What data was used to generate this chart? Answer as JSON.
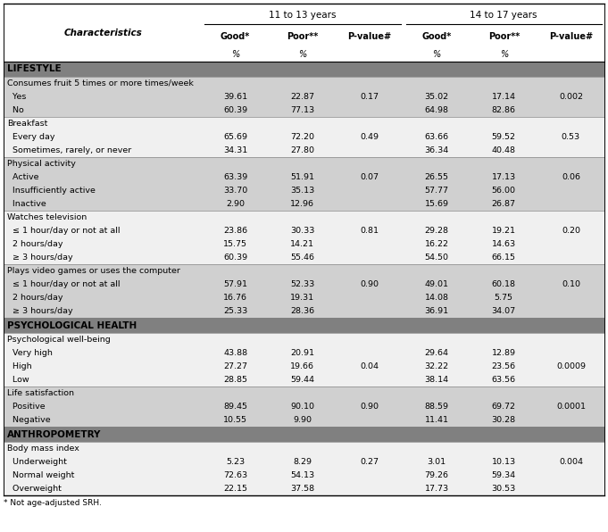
{
  "rows": [
    {
      "label": "Consumes fruit 5 times or more times/week",
      "indent": 0,
      "type": "subheader",
      "bg": "light",
      "values": [
        "",
        "",
        "",
        "",
        "",
        ""
      ]
    },
    {
      "label": "  Yes",
      "indent": 1,
      "type": "data",
      "bg": "light",
      "values": [
        "39.61",
        "22.87",
        "0.17",
        "35.02",
        "17.14",
        "0.002"
      ]
    },
    {
      "label": "  No",
      "indent": 1,
      "type": "data",
      "bg": "light",
      "values": [
        "60.39",
        "77.13",
        "",
        "64.98",
        "82.86",
        ""
      ]
    },
    {
      "label": "Breakfast",
      "indent": 0,
      "type": "subheader",
      "bg": "white",
      "values": [
        "",
        "",
        "",
        "",
        "",
        ""
      ]
    },
    {
      "label": "  Every day",
      "indent": 1,
      "type": "data",
      "bg": "white",
      "values": [
        "65.69",
        "72.20",
        "0.49",
        "63.66",
        "59.52",
        "0.53"
      ]
    },
    {
      "label": "  Sometimes, rarely, or never",
      "indent": 1,
      "type": "data",
      "bg": "white",
      "values": [
        "34.31",
        "27.80",
        "",
        "36.34",
        "40.48",
        ""
      ]
    },
    {
      "label": "Physical activity",
      "indent": 0,
      "type": "subheader",
      "bg": "light",
      "values": [
        "",
        "",
        "",
        "",
        "",
        ""
      ]
    },
    {
      "label": "  Active",
      "indent": 1,
      "type": "data",
      "bg": "light",
      "values": [
        "63.39",
        "51.91",
        "0.07",
        "26.55",
        "17.13",
        "0.06"
      ]
    },
    {
      "label": "  Insufficiently active",
      "indent": 1,
      "type": "data",
      "bg": "light",
      "values": [
        "33.70",
        "35.13",
        "",
        "57.77",
        "56.00",
        ""
      ]
    },
    {
      "label": "  Inactive",
      "indent": 1,
      "type": "data",
      "bg": "light",
      "values": [
        "2.90",
        "12.96",
        "",
        "15.69",
        "26.87",
        ""
      ]
    },
    {
      "label": "Watches television",
      "indent": 0,
      "type": "subheader",
      "bg": "white",
      "values": [
        "",
        "",
        "",
        "",
        "",
        ""
      ]
    },
    {
      "label": "  ≤ 1 hour/day or not at all",
      "indent": 1,
      "type": "data",
      "bg": "white",
      "values": [
        "23.86",
        "30.33",
        "0.81",
        "29.28",
        "19.21",
        "0.20"
      ]
    },
    {
      "label": "  2 hours/day",
      "indent": 1,
      "type": "data",
      "bg": "white",
      "values": [
        "15.75",
        "14.21",
        "",
        "16.22",
        "14.63",
        ""
      ]
    },
    {
      "label": "  ≥ 3 hours/day",
      "indent": 1,
      "type": "data",
      "bg": "white",
      "values": [
        "60.39",
        "55.46",
        "",
        "54.50",
        "66.15",
        ""
      ]
    },
    {
      "label": "Plays video games or uses the computer",
      "indent": 0,
      "type": "subheader",
      "bg": "light",
      "values": [
        "",
        "",
        "",
        "",
        "",
        ""
      ]
    },
    {
      "label": "  ≤ 1 hour/day or not at all",
      "indent": 1,
      "type": "data",
      "bg": "light",
      "values": [
        "57.91",
        "52.33",
        "0.90",
        "49.01",
        "60.18",
        "0.10"
      ]
    },
    {
      "label": "  2 hours/day",
      "indent": 1,
      "type": "data",
      "bg": "light",
      "values": [
        "16.76",
        "19.31",
        "",
        "14.08",
        "5.75",
        ""
      ]
    },
    {
      "label": "  ≥ 3 hours/day",
      "indent": 1,
      "type": "data",
      "bg": "light",
      "values": [
        "25.33",
        "28.36",
        "",
        "36.91",
        "34.07",
        ""
      ]
    },
    {
      "label": "PSYCHOLOGICAL HEALTH",
      "indent": 0,
      "type": "section",
      "bg": "dark",
      "values": [
        "",
        "",
        "",
        "",
        "",
        ""
      ]
    },
    {
      "label": "Psychological well-being",
      "indent": 0,
      "type": "subheader",
      "bg": "white",
      "values": [
        "",
        "",
        "",
        "",
        "",
        ""
      ]
    },
    {
      "label": "  Very high",
      "indent": 1,
      "type": "data",
      "bg": "white",
      "values": [
        "43.88",
        "20.91",
        "",
        "29.64",
        "12.89",
        ""
      ]
    },
    {
      "label": "  High",
      "indent": 1,
      "type": "data",
      "bg": "white",
      "values": [
        "27.27",
        "19.66",
        "0.04",
        "32.22",
        "23.56",
        "0.0009"
      ]
    },
    {
      "label": "  Low",
      "indent": 1,
      "type": "data",
      "bg": "white",
      "values": [
        "28.85",
        "59.44",
        "",
        "38.14",
        "63.56",
        ""
      ]
    },
    {
      "label": "Life satisfaction",
      "indent": 0,
      "type": "subheader",
      "bg": "light",
      "values": [
        "",
        "",
        "",
        "",
        "",
        ""
      ]
    },
    {
      "label": "  Positive",
      "indent": 1,
      "type": "data",
      "bg": "light",
      "values": [
        "89.45",
        "90.10",
        "0.90",
        "88.59",
        "69.72",
        "0.0001"
      ]
    },
    {
      "label": "  Negative",
      "indent": 1,
      "type": "data",
      "bg": "light",
      "values": [
        "10.55",
        "9.90",
        "",
        "11.41",
        "30.28",
        ""
      ]
    },
    {
      "label": "ANTHROPOMETRY",
      "indent": 0,
      "type": "section",
      "bg": "dark",
      "values": [
        "",
        "",
        "",
        "",
        "",
        ""
      ]
    },
    {
      "label": "Body mass index",
      "indent": 0,
      "type": "subheader",
      "bg": "white",
      "values": [
        "",
        "",
        "",
        "",
        "",
        ""
      ]
    },
    {
      "label": "  Underweight",
      "indent": 1,
      "type": "data",
      "bg": "white",
      "values": [
        "5.23",
        "8.29",
        "0.27",
        "3.01",
        "10.13",
        "0.004"
      ]
    },
    {
      "label": "  Normal weight",
      "indent": 1,
      "type": "data",
      "bg": "white",
      "values": [
        "72.63",
        "54.13",
        "",
        "79.26",
        "59.34",
        ""
      ]
    },
    {
      "label": "  Overweight",
      "indent": 1,
      "type": "data",
      "bg": "white",
      "values": [
        "22.15",
        "37.58",
        "",
        "17.73",
        "30.53",
        ""
      ]
    }
  ],
  "section_bg": "#808080",
  "light_bg": "#d0d0d0",
  "white_bg": "#f0f0f0",
  "header_bg": "#ffffff",
  "col_headers": [
    "Good*",
    "Poor**",
    "P-value#",
    "Good*",
    "Poor**",
    "P-value#"
  ],
  "units_row": [
    "%",
    "%",
    "",
    "%",
    "%",
    ""
  ],
  "group1": "11 to 13 years",
  "group2": "14 to 17 years",
  "characteristics_label": "Characteristics",
  "lifestyle_label": "LIFESTYLE",
  "footnote": "* Not age-adjusted SRH."
}
